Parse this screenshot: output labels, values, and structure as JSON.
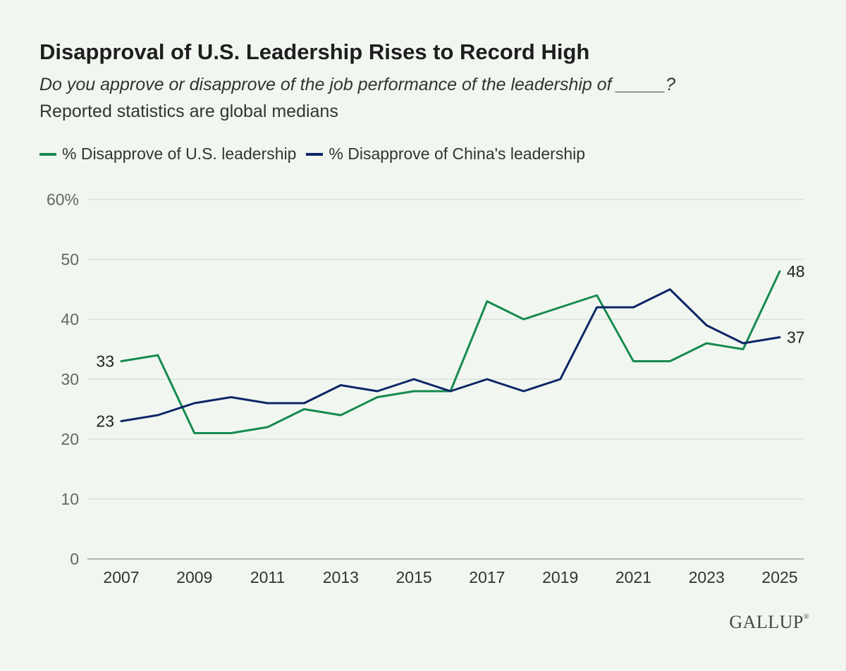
{
  "chart_data": {
    "type": "line",
    "title": "Disapproval of U.S. Leadership Rises to Record High",
    "subtitle": "Do you approve or disapprove of the job performance of the leadership of _____?",
    "note": "Reported statistics are global medians",
    "x": [
      2007,
      2008,
      2009,
      2010,
      2011,
      2012,
      2013,
      2014,
      2015,
      2016,
      2017,
      2018,
      2019,
      2020,
      2021,
      2022,
      2023,
      2024,
      2025
    ],
    "x_tick_labels": [
      "2007",
      "2009",
      "2011",
      "2013",
      "2015",
      "2017",
      "2019",
      "2021",
      "2023",
      "2025"
    ],
    "y_tick_labels": [
      "0",
      "10",
      "20",
      "30",
      "40",
      "50",
      "60%"
    ],
    "ylim": [
      0,
      60
    ],
    "xlabel": "",
    "ylabel": "",
    "grid": true,
    "legend_position": "top-left",
    "series": [
      {
        "name": "% Disapprove of U.S. leadership",
        "color": "#168a4f",
        "values": [
          33,
          34,
          21,
          21,
          22,
          25,
          24,
          27,
          28,
          28,
          43,
          40,
          42,
          44,
          33,
          33,
          36,
          35,
          48
        ]
      },
      {
        "name": "% Disapprove of China's leadership",
        "color": "#0e2466",
        "values": [
          23,
          24,
          26,
          27,
          26,
          26,
          29,
          28,
          30,
          28,
          30,
          28,
          30,
          42,
          42,
          45,
          39,
          36,
          37
        ]
      }
    ],
    "annotations": [
      {
        "series": 0,
        "point": "first",
        "label": "33"
      },
      {
        "series": 1,
        "point": "first",
        "label": "23"
      },
      {
        "series": 0,
        "point": "last",
        "label": "48"
      },
      {
        "series": 1,
        "point": "last",
        "label": "37"
      }
    ]
  },
  "brand": {
    "logo_text": "GALLUP",
    "logo_mark": "®"
  },
  "colors": {
    "background": "#f1f7f0",
    "grid": "#cfd6cf",
    "axis_text": "#666666"
  }
}
